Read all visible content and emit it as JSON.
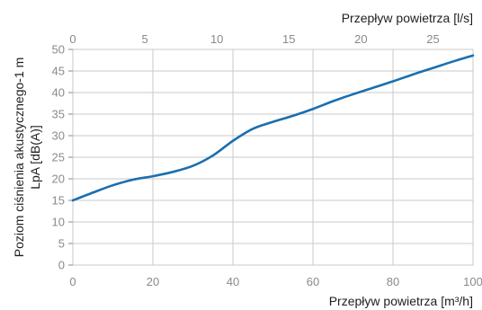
{
  "chart_data": {
    "type": "line",
    "xlabel": "Przepływ powietrza [m³/h]",
    "x2label": "Przepływ powietrza [l/s]",
    "ylabel_line1": "Poziom ciśnienia akustycznego-1 m",
    "ylabel_line2": "LpA [dB(A)]",
    "xlim": [
      0,
      100
    ],
    "x2lim": [
      0,
      27.78
    ],
    "ylim": [
      0,
      50
    ],
    "x_ticks": [
      0,
      20,
      40,
      60,
      80,
      100
    ],
    "x2_ticks": [
      0,
      5,
      10,
      15,
      20,
      25
    ],
    "y_ticks": [
      0,
      5,
      10,
      15,
      20,
      25,
      30,
      35,
      40,
      45,
      50
    ],
    "grid": true,
    "series": [
      {
        "color": "#1a6fb0",
        "x": [
          0,
          5,
          10,
          15,
          20,
          25,
          30,
          35,
          40,
          45,
          50,
          55,
          60,
          65,
          70,
          75,
          80,
          85,
          90,
          95,
          100
        ],
        "y": [
          15.0,
          16.8,
          18.5,
          19.8,
          20.6,
          21.6,
          23.0,
          25.4,
          28.8,
          31.6,
          33.2,
          34.6,
          36.2,
          38.0,
          39.6,
          41.1,
          42.6,
          44.2,
          45.7,
          47.2,
          48.6
        ]
      }
    ]
  }
}
